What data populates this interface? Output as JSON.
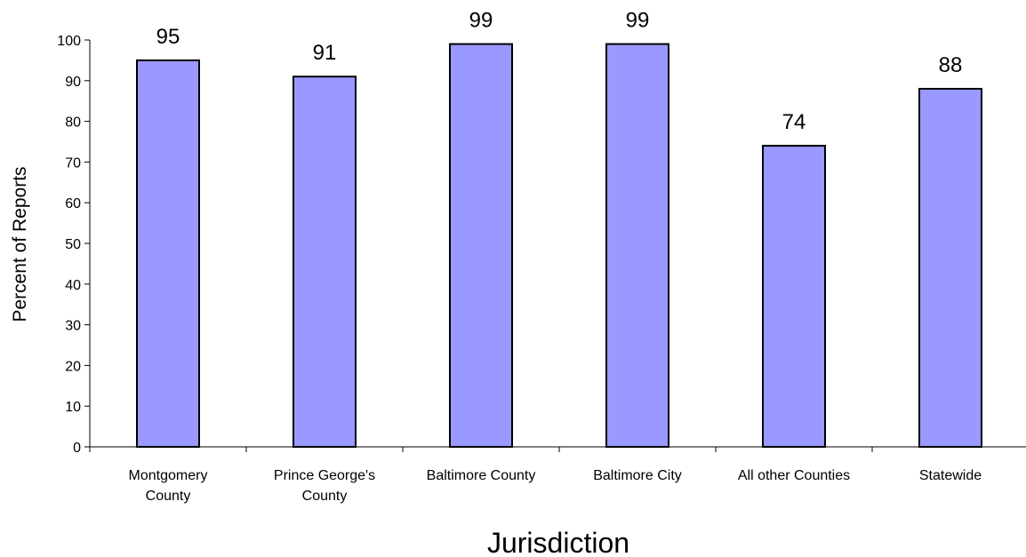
{
  "chart_data": {
    "type": "bar",
    "categories": [
      [
        "Montgomery",
        "County"
      ],
      [
        "Prince George's",
        "County"
      ],
      [
        "Baltimore County"
      ],
      [
        "Baltimore City"
      ],
      [
        "All other Counties"
      ],
      [
        "Statewide"
      ]
    ],
    "values": [
      95,
      91,
      99,
      99,
      74,
      88
    ],
    "value_labels": [
      "95",
      "91",
      "99",
      "99",
      "74",
      "88"
    ],
    "xlabel": "Jurisdiction",
    "ylabel": "Percent of Reports",
    "ylim": [
      0,
      100
    ],
    "yticks": [
      0,
      10,
      20,
      30,
      40,
      50,
      60,
      70,
      80,
      90,
      100
    ],
    "bar_color": "#9999ff",
    "bar_edge_color": "#000000",
    "grid": false,
    "legend": "none"
  }
}
